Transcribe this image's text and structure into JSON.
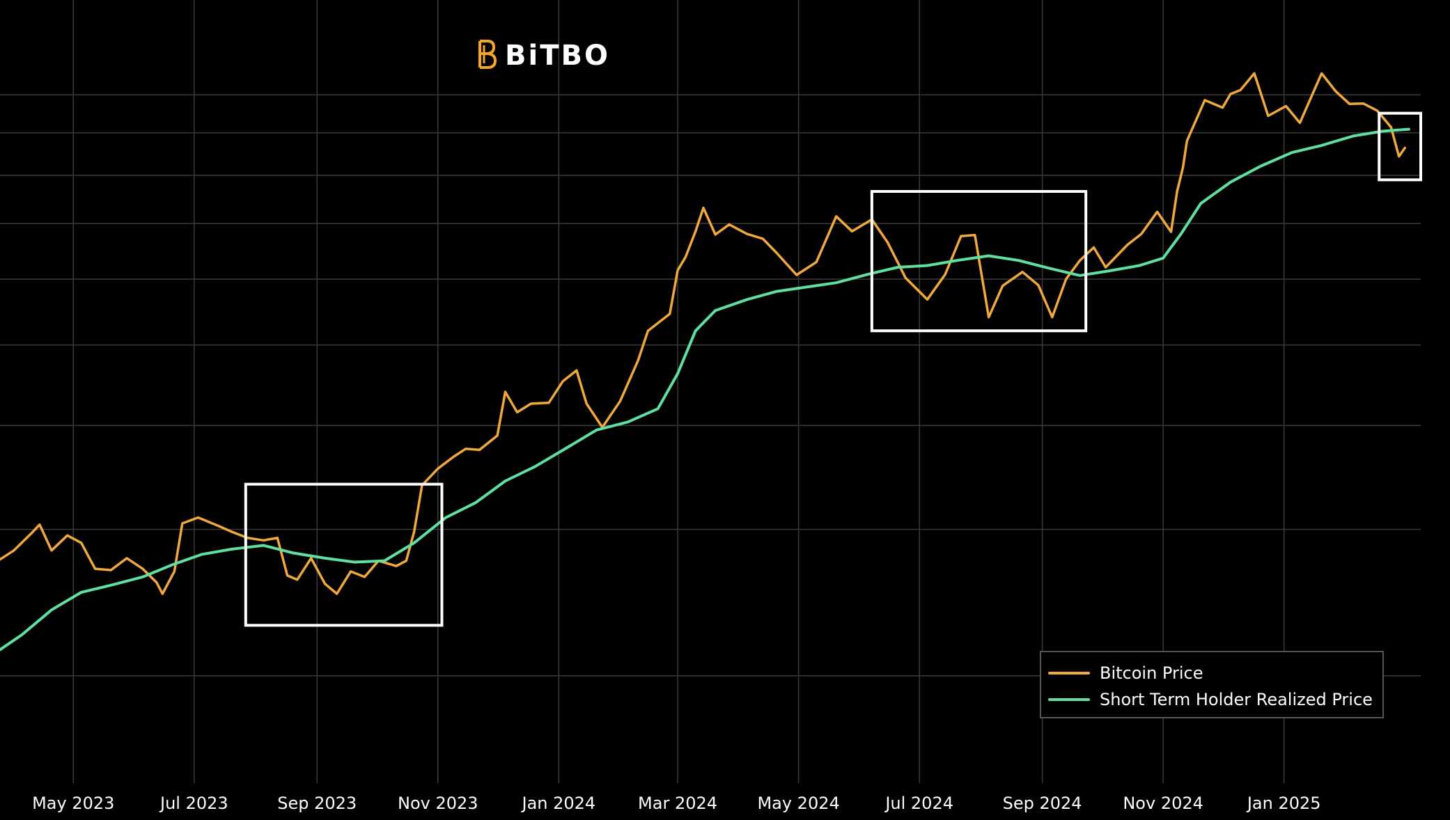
{
  "logo": {
    "text": "BiTBO",
    "icon": "bitbo-b-icon",
    "icon_color": "#F5A623"
  },
  "colors": {
    "background": "#000000",
    "grid": "#3a3a3a",
    "price": "#F0A93C",
    "realized": "#5FE0A0",
    "box": "#FFFFFF"
  },
  "legend": {
    "items": [
      {
        "label": "Bitcoin Price",
        "color": "#F0A93C"
      },
      {
        "label": "Short Term Holder Realized Price",
        "color": "#5FE0A0"
      }
    ],
    "placement": "bottom-right"
  },
  "chart_data": {
    "type": "line",
    "x_type": "date",
    "x_ticks": [
      "May 2023",
      "Jul 2023",
      "Sep 2023",
      "Nov 2023",
      "Jan 2024",
      "Mar 2024",
      "May 2024",
      "Jul 2024",
      "Sep 2024",
      "Nov 2024",
      "Jan 2025"
    ],
    "x_range": [
      "2023-03-25",
      "2025-03-11"
    ],
    "y_scale": "log",
    "y_range": [
      15000,
      130000
    ],
    "y_gridlines": [
      20000,
      30000,
      40000,
      50000,
      60000,
      70000,
      80000,
      90000,
      100000
    ],
    "y_tick_labels_shown": false,
    "grid": true,
    "series": [
      {
        "name": "Bitcoin Price",
        "color": "#F0A93C",
        "x": [
          "2023-03-25",
          "2023-04-01",
          "2023-04-10",
          "2023-04-14",
          "2023-04-20",
          "2023-04-28",
          "2023-05-05",
          "2023-05-12",
          "2023-05-20",
          "2023-05-28",
          "2023-06-05",
          "2023-06-12",
          "2023-06-15",
          "2023-06-21",
          "2023-06-25",
          "2023-07-03",
          "2023-07-13",
          "2023-07-20",
          "2023-07-28",
          "2023-08-05",
          "2023-08-12",
          "2023-08-17",
          "2023-08-22",
          "2023-08-29",
          "2023-09-05",
          "2023-09-11",
          "2023-09-18",
          "2023-09-25",
          "2023-10-02",
          "2023-10-11",
          "2023-10-16",
          "2023-10-20",
          "2023-10-24",
          "2023-11-01",
          "2023-11-09",
          "2023-11-15",
          "2023-11-22",
          "2023-12-01",
          "2023-12-05",
          "2023-12-11",
          "2023-12-18",
          "2023-12-27",
          "2024-01-03",
          "2024-01-10",
          "2024-01-15",
          "2024-01-23",
          "2024-02-01",
          "2024-02-10",
          "2024-02-15",
          "2024-02-26",
          "2024-03-01",
          "2024-03-05",
          "2024-03-10",
          "2024-03-14",
          "2024-03-20",
          "2024-03-27",
          "2024-04-05",
          "2024-04-13",
          "2024-04-20",
          "2024-04-30",
          "2024-05-10",
          "2024-05-20",
          "2024-05-28",
          "2024-06-07",
          "2024-06-15",
          "2024-06-24",
          "2024-07-05",
          "2024-07-14",
          "2024-07-22",
          "2024-07-29",
          "2024-08-05",
          "2024-08-12",
          "2024-08-22",
          "2024-08-30",
          "2024-09-06",
          "2024-09-13",
          "2024-09-20",
          "2024-09-27",
          "2024-10-03",
          "2024-10-14",
          "2024-10-21",
          "2024-10-29",
          "2024-11-05",
          "2024-11-08",
          "2024-11-11",
          "2024-11-13",
          "2024-11-22",
          "2024-12-01",
          "2024-12-05",
          "2024-12-10",
          "2024-12-17",
          "2024-12-24",
          "2025-01-02",
          "2025-01-09",
          "2025-01-20",
          "2025-01-27",
          "2025-02-03",
          "2025-02-10",
          "2025-02-17",
          "2025-02-24",
          "2025-02-28",
          "2025-03-03"
        ],
        "y": [
          27600,
          28300,
          29700,
          30400,
          28300,
          29500,
          28900,
          26900,
          26800,
          27700,
          26900,
          25900,
          25100,
          26700,
          30500,
          31000,
          30300,
          29800,
          29300,
          29100,
          29300,
          26400,
          26100,
          27700,
          25800,
          25100,
          26700,
          26300,
          27500,
          27100,
          27500,
          29800,
          33900,
          35500,
          36700,
          37500,
          37400,
          38900,
          43900,
          41500,
          42500,
          42600,
          45200,
          46600,
          42500,
          39800,
          42800,
          47900,
          52000,
          54500,
          61500,
          63800,
          68500,
          73100,
          67900,
          69800,
          68000,
          67100,
          64500,
          60700,
          62900,
          71400,
          68500,
          70800,
          66400,
          60200,
          56700,
          60800,
          67600,
          67800,
          54000,
          58900,
          61200,
          59000,
          54000,
          60000,
          63200,
          65500,
          62000,
          66000,
          68000,
          72300,
          68400,
          76400,
          81800,
          88000,
          98500,
          96500,
          100200,
          101300,
          106100,
          94300,
          96900,
          92500,
          106100,
          101000,
          97500,
          97600,
          95700,
          91400,
          84300,
          86300
        ]
      },
      {
        "name": "Short Term Holder Realized Price",
        "color": "#5FE0A0",
        "x": [
          "2023-03-25",
          "2023-04-05",
          "2023-04-20",
          "2023-05-05",
          "2023-05-20",
          "2023-06-05",
          "2023-06-20",
          "2023-07-05",
          "2023-07-20",
          "2023-08-05",
          "2023-08-20",
          "2023-09-05",
          "2023-09-20",
          "2023-10-05",
          "2023-10-20",
          "2023-11-05",
          "2023-11-20",
          "2023-12-05",
          "2023-12-20",
          "2024-01-05",
          "2024-01-20",
          "2024-02-05",
          "2024-02-20",
          "2024-03-01",
          "2024-03-10",
          "2024-03-20",
          "2024-04-05",
          "2024-04-20",
          "2024-05-05",
          "2024-05-20",
          "2024-06-05",
          "2024-06-20",
          "2024-07-05",
          "2024-07-20",
          "2024-08-05",
          "2024-08-20",
          "2024-09-05",
          "2024-09-20",
          "2024-10-05",
          "2024-10-20",
          "2024-11-01",
          "2024-11-10",
          "2024-11-20",
          "2024-12-05",
          "2024-12-20",
          "2025-01-05",
          "2025-01-20",
          "2025-02-05",
          "2025-02-20",
          "2025-03-05"
        ],
        "y": [
          21500,
          22400,
          24000,
          25200,
          25700,
          26300,
          27200,
          28000,
          28400,
          28700,
          28100,
          27700,
          27400,
          27500,
          28900,
          31000,
          32300,
          34300,
          35700,
          37600,
          39500,
          40400,
          41900,
          46200,
          52000,
          55000,
          56700,
          58000,
          58700,
          59400,
          60800,
          62000,
          62300,
          63200,
          64000,
          63200,
          61800,
          60600,
          61400,
          62300,
          63600,
          68000,
          74000,
          78500,
          82000,
          85200,
          86900,
          89200,
          90400,
          90900
        ]
      }
    ],
    "highlight_boxes": [
      {
        "x_start": "2023-07-27",
        "x_end": "2023-11-03",
        "y_low": 23000,
        "y_high": 34000
      },
      {
        "x_start": "2024-06-07",
        "x_end": "2024-09-23",
        "y_low": 52000,
        "y_high": 76500
      },
      {
        "x_start": "2025-02-18",
        "x_end": "2025-03-11",
        "y_low": 79000,
        "y_high": 95000
      }
    ]
  }
}
